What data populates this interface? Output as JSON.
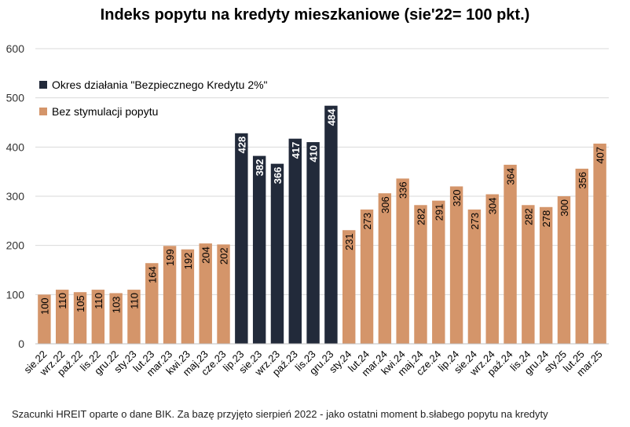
{
  "chart_data": {
    "type": "bar",
    "title": "Indeks popytu na kredyty mieszkaniowe (sie'22= 100 pkt.)",
    "ylim": [
      0,
      600
    ],
    "yticks": [
      0,
      100,
      200,
      300,
      400,
      500,
      600
    ],
    "grid": true,
    "legend_position": "top-left",
    "categories": [
      "sie.22",
      "wrz.22",
      "paź.22",
      "lis.22",
      "gru.22",
      "sty.23",
      "lut.23",
      "mar.23",
      "kwi.23",
      "maj.23",
      "cze.23",
      "lip.23",
      "sie.23",
      "wrz.23",
      "paź.23",
      "lis.23",
      "gru.23",
      "sty.24",
      "lut.24",
      "mar.24",
      "kwi.24",
      "maj.24",
      "cze.24",
      "lip.24",
      "sie.24",
      "wrz.24",
      "paź.24",
      "lis.24",
      "gru.24",
      "sty.25",
      "lut.25",
      "mar.25"
    ],
    "values": [
      100,
      110,
      105,
      110,
      103,
      110,
      164,
      199,
      192,
      204,
      202,
      428,
      382,
      366,
      417,
      410,
      484,
      231,
      273,
      306,
      336,
      282,
      291,
      320,
      273,
      304,
      364,
      282,
      278,
      300,
      356,
      407
    ],
    "series_index": [
      1,
      1,
      1,
      1,
      1,
      1,
      1,
      1,
      1,
      1,
      1,
      0,
      0,
      0,
      0,
      0,
      0,
      1,
      1,
      1,
      1,
      1,
      1,
      1,
      1,
      1,
      1,
      1,
      1,
      1,
      1,
      1
    ],
    "series": [
      {
        "name": "Okres działania \"Bezpiecznego Kredytu 2%\"",
        "color": "#222a3a"
      },
      {
        "name": "Bez stymulacji popytu",
        "color": "#d4956a"
      }
    ]
  },
  "source_note": "Szacunki HREIT oparte o dane BIK. Za bazę przyjęto sierpień 2022 - jako ostatni moment b.słabego popytu na kredyty"
}
